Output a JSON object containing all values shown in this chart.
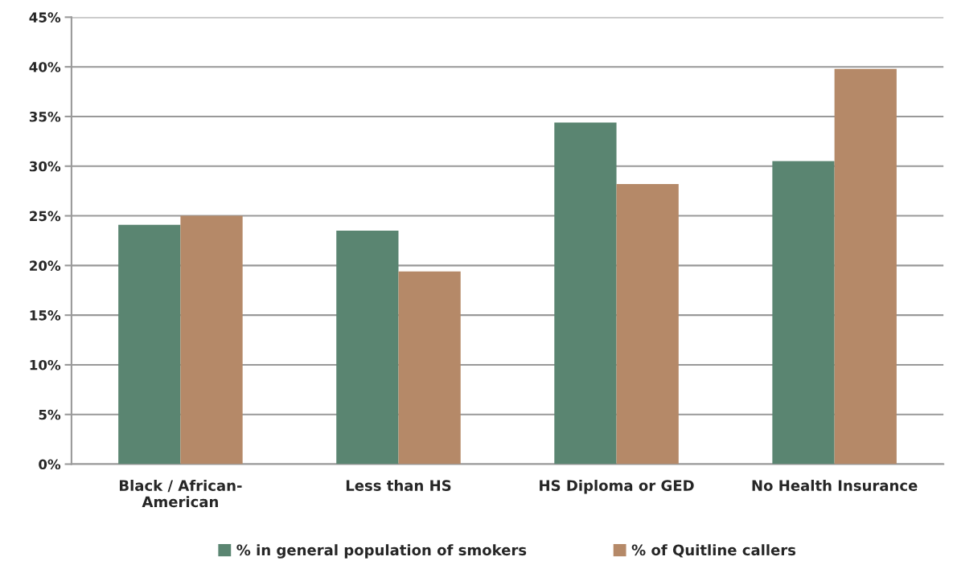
{
  "chart_data": {
    "type": "bar",
    "categories": [
      "Black / African-\nAmerican",
      "Less than HS",
      "HS Diploma or GED",
      "No Health Insurance"
    ],
    "series": [
      {
        "name": "% in general population of smokers",
        "color": "#5a8571",
        "values": [
          24.1,
          23.5,
          34.4,
          30.5
        ]
      },
      {
        "name": "% of Quitline callers",
        "color": "#b58968",
        "values": [
          25.0,
          19.4,
          28.2,
          39.8
        ]
      }
    ],
    "ylim": [
      0,
      45
    ],
    "yticks": [
      {
        "value": 0,
        "label": "0%"
      },
      {
        "value": 5,
        "label": "5%"
      },
      {
        "value": 10,
        "label": "10%"
      },
      {
        "value": 15,
        "label": "15%"
      },
      {
        "value": 20,
        "label": "20%"
      },
      {
        "value": 25,
        "label": "25%"
      },
      {
        "value": 30,
        "label": "30%"
      },
      {
        "value": 35,
        "label": "35%"
      },
      {
        "value": 40,
        "label": "40%"
      },
      {
        "value": 45,
        "label": "45%"
      }
    ],
    "grid": "y",
    "legend": "bottom"
  }
}
